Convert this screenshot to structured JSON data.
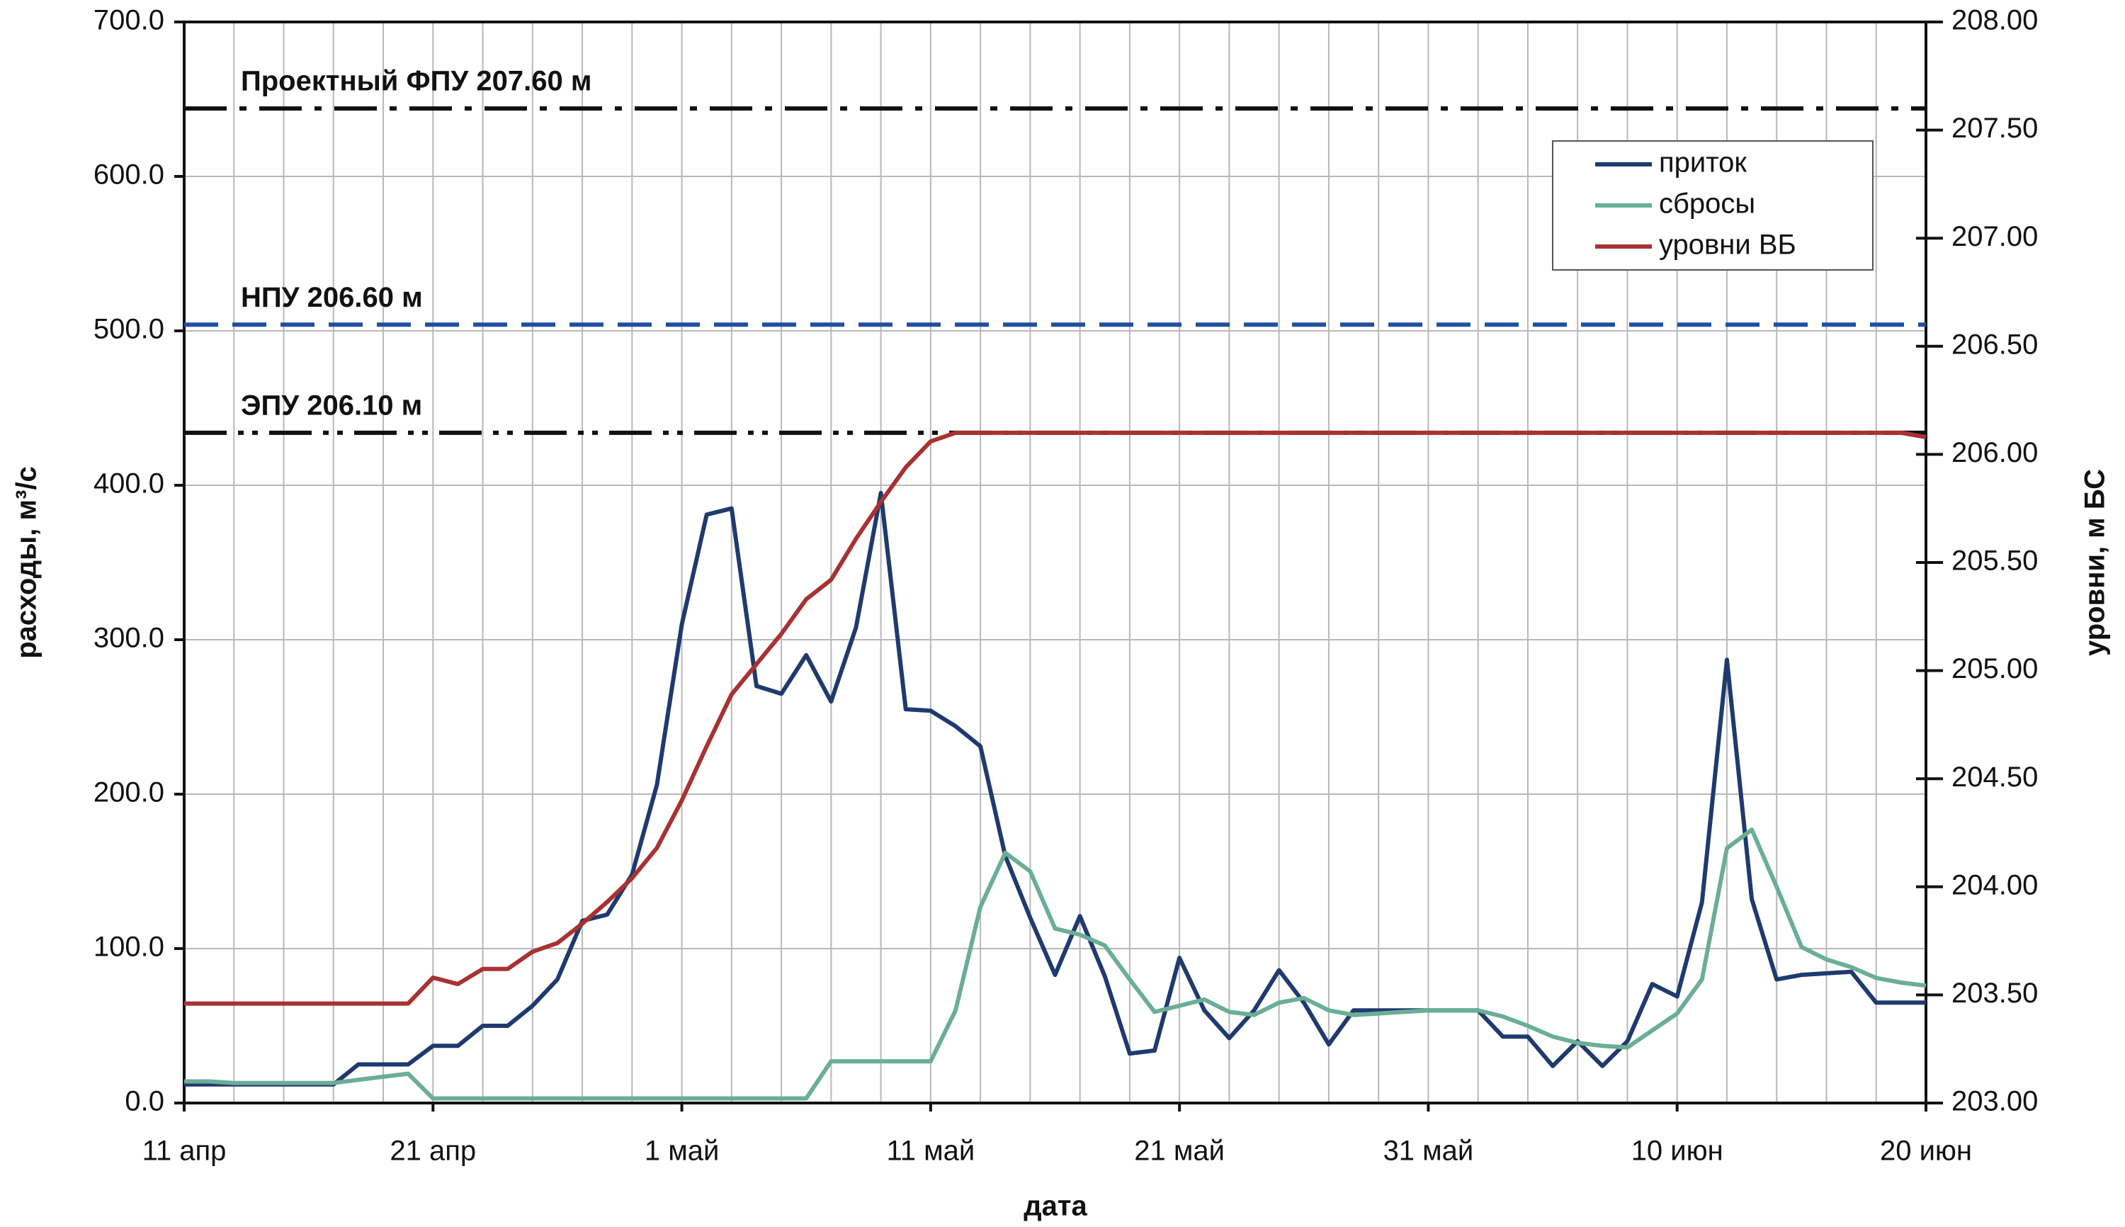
{
  "chart_data": {
    "type": "line",
    "x_label": "дата",
    "y_label": "расходы, м³/с",
    "y2_label": "уровни, м БС",
    "categories": [
      "11 апр",
      null,
      null,
      null,
      null,
      null,
      null,
      null,
      null,
      null,
      "21 апр",
      null,
      null,
      null,
      null,
      null,
      null,
      null,
      null,
      null,
      "1 май",
      null,
      null,
      null,
      null,
      null,
      null,
      null,
      null,
      null,
      "11 май",
      null,
      null,
      null,
      null,
      null,
      null,
      null,
      null,
      null,
      "21 май",
      null,
      null,
      null,
      null,
      null,
      null,
      null,
      null,
      null,
      "31 май",
      null,
      null,
      null,
      null,
      null,
      null,
      null,
      null,
      null,
      "10 июн",
      null,
      null,
      null,
      null,
      null,
      null,
      null,
      null,
      null,
      "20 июн"
    ],
    "ylim": [
      0,
      700
    ],
    "yticks": [
      {
        "value": 0,
        "label": "0.0"
      },
      {
        "value": 100,
        "label": "100.0"
      },
      {
        "value": 200,
        "label": "200.0"
      },
      {
        "value": 300,
        "label": "300.0"
      },
      {
        "value": 400,
        "label": "400.0"
      },
      {
        "value": 500,
        "label": "500.0"
      },
      {
        "value": 600,
        "label": "600.0"
      },
      {
        "value": 700,
        "label": "700.0"
      }
    ],
    "y2lim": [
      203,
      208
    ],
    "y2ticks": [
      {
        "value": 203,
        "label": "203.00"
      },
      {
        "value": 203.5,
        "label": "203.50"
      },
      {
        "value": 204,
        "label": "204.00"
      },
      {
        "value": 204.5,
        "label": "204.50"
      },
      {
        "value": 205,
        "label": "205.00"
      },
      {
        "value": 205.5,
        "label": "205.50"
      },
      {
        "value": 206,
        "label": "206.00"
      },
      {
        "value": 206.5,
        "label": "206.50"
      },
      {
        "value": 207,
        "label": "207.00"
      },
      {
        "value": 207.5,
        "label": "207.50"
      },
      {
        "value": 208,
        "label": "208.00"
      }
    ],
    "grid": true,
    "legend": "upper right",
    "series": [
      {
        "name": "приток",
        "color": "#1f3a6e",
        "values": [
          12,
          12,
          12,
          12,
          12,
          12,
          12,
          25,
          25,
          25,
          37,
          37,
          50,
          50,
          63,
          80,
          118,
          122,
          148,
          206,
          310,
          381,
          385,
          270,
          265,
          290,
          260,
          308,
          395,
          255,
          254,
          244,
          231,
          160,
          120,
          83,
          121,
          82,
          32,
          34,
          94,
          60,
          42,
          60,
          86,
          65,
          38,
          60,
          60,
          60,
          60,
          60,
          60,
          43,
          43,
          24,
          40,
          24,
          40,
          77,
          69,
          130,
          287,
          132,
          80,
          83,
          84,
          85,
          65,
          65,
          65
        ]
      },
      {
        "name": "сбросы",
        "color": "#6aae96",
        "values": [
          14,
          14,
          13,
          13,
          13,
          13,
          13,
          15,
          17,
          19,
          3,
          3,
          3,
          3,
          3,
          3,
          3,
          3,
          3,
          3,
          3,
          3,
          3,
          3,
          3,
          3,
          27,
          27,
          27,
          27,
          27,
          60,
          127,
          162,
          150,
          113,
          109,
          102,
          80,
          59,
          63,
          67,
          59,
          57,
          65,
          68,
          60,
          57,
          58,
          59,
          60,
          60,
          60,
          56,
          50,
          43,
          39,
          37,
          36,
          47,
          58,
          80,
          165,
          177,
          140,
          101,
          93,
          88,
          81,
          78,
          76
        ]
      },
      {
        "name": "уровни ВБ",
        "color": "#a83232",
        "axis": "y2",
        "values": [
          203.46,
          203.46,
          203.46,
          203.46,
          203.46,
          203.46,
          203.46,
          203.46,
          203.46,
          203.46,
          203.58,
          203.55,
          203.62,
          203.62,
          203.7,
          203.74,
          203.83,
          203.93,
          204.04,
          204.18,
          204.4,
          204.65,
          204.89,
          205.03,
          205.17,
          205.33,
          205.42,
          205.61,
          205.78,
          205.94,
          206.06,
          206.1,
          206.1,
          206.1,
          206.1,
          206.1,
          206.1,
          206.1,
          206.1,
          206.1,
          206.1,
          206.1,
          206.1,
          206.1,
          206.1,
          206.1,
          206.1,
          206.1,
          206.1,
          206.1,
          206.1,
          206.1,
          206.1,
          206.1,
          206.1,
          206.1,
          206.1,
          206.1,
          206.1,
          206.1,
          206.1,
          206.1,
          206.1,
          206.1,
          206.1,
          206.1,
          206.1,
          206.1,
          206.1,
          206.1,
          206.08
        ]
      }
    ],
    "reference_lines": [
      {
        "label": "Проектный ФПУ 207.60 м",
        "value": 207.6,
        "axis": "y2",
        "color": "#111111",
        "style": "dashdot"
      },
      {
        "label": "НПУ 206.60 м",
        "value": 206.6,
        "axis": "y2",
        "color": "#1f4fa0",
        "style": "dashed"
      },
      {
        "label": "ЭПУ 206.10 м",
        "value": 206.1,
        "axis": "y2",
        "color": "#111111",
        "style": "dashdotdot"
      }
    ]
  }
}
